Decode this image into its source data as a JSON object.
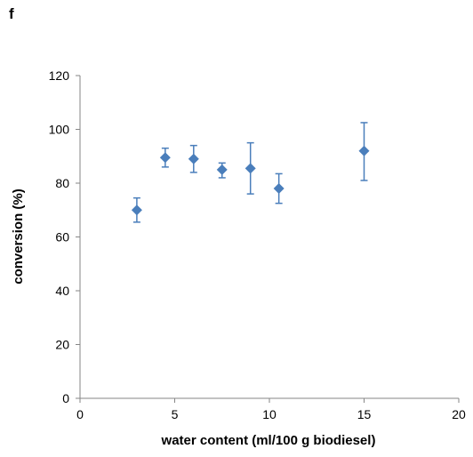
{
  "panel_label": "f",
  "chart_data": {
    "type": "scatter",
    "title": "",
    "xlabel": "water content (ml/100 g biodiesel)",
    "ylabel": "conversion (%)",
    "xlim": [
      0,
      20
    ],
    "ylim": [
      0,
      120
    ],
    "x_ticks": [
      0,
      5,
      10,
      15,
      20
    ],
    "y_ticks": [
      0,
      20,
      40,
      60,
      80,
      100,
      120
    ],
    "grid": false,
    "legend": "none",
    "marker": "diamond",
    "color": "#4a7ebb",
    "points": [
      {
        "x": 3,
        "y": 70,
        "err_low": 65.5,
        "err_high": 74.5
      },
      {
        "x": 4.5,
        "y": 89.5,
        "err_low": 86,
        "err_high": 93
      },
      {
        "x": 6,
        "y": 89,
        "err_low": 84,
        "err_high": 94
      },
      {
        "x": 7.5,
        "y": 85,
        "err_low": 82,
        "err_high": 87.5
      },
      {
        "x": 9,
        "y": 85.5,
        "err_low": 76,
        "err_high": 95
      },
      {
        "x": 10.5,
        "y": 78,
        "err_low": 72.5,
        "err_high": 83.5
      },
      {
        "x": 15,
        "y": 92,
        "err_low": 81,
        "err_high": 102.5
      }
    ]
  }
}
